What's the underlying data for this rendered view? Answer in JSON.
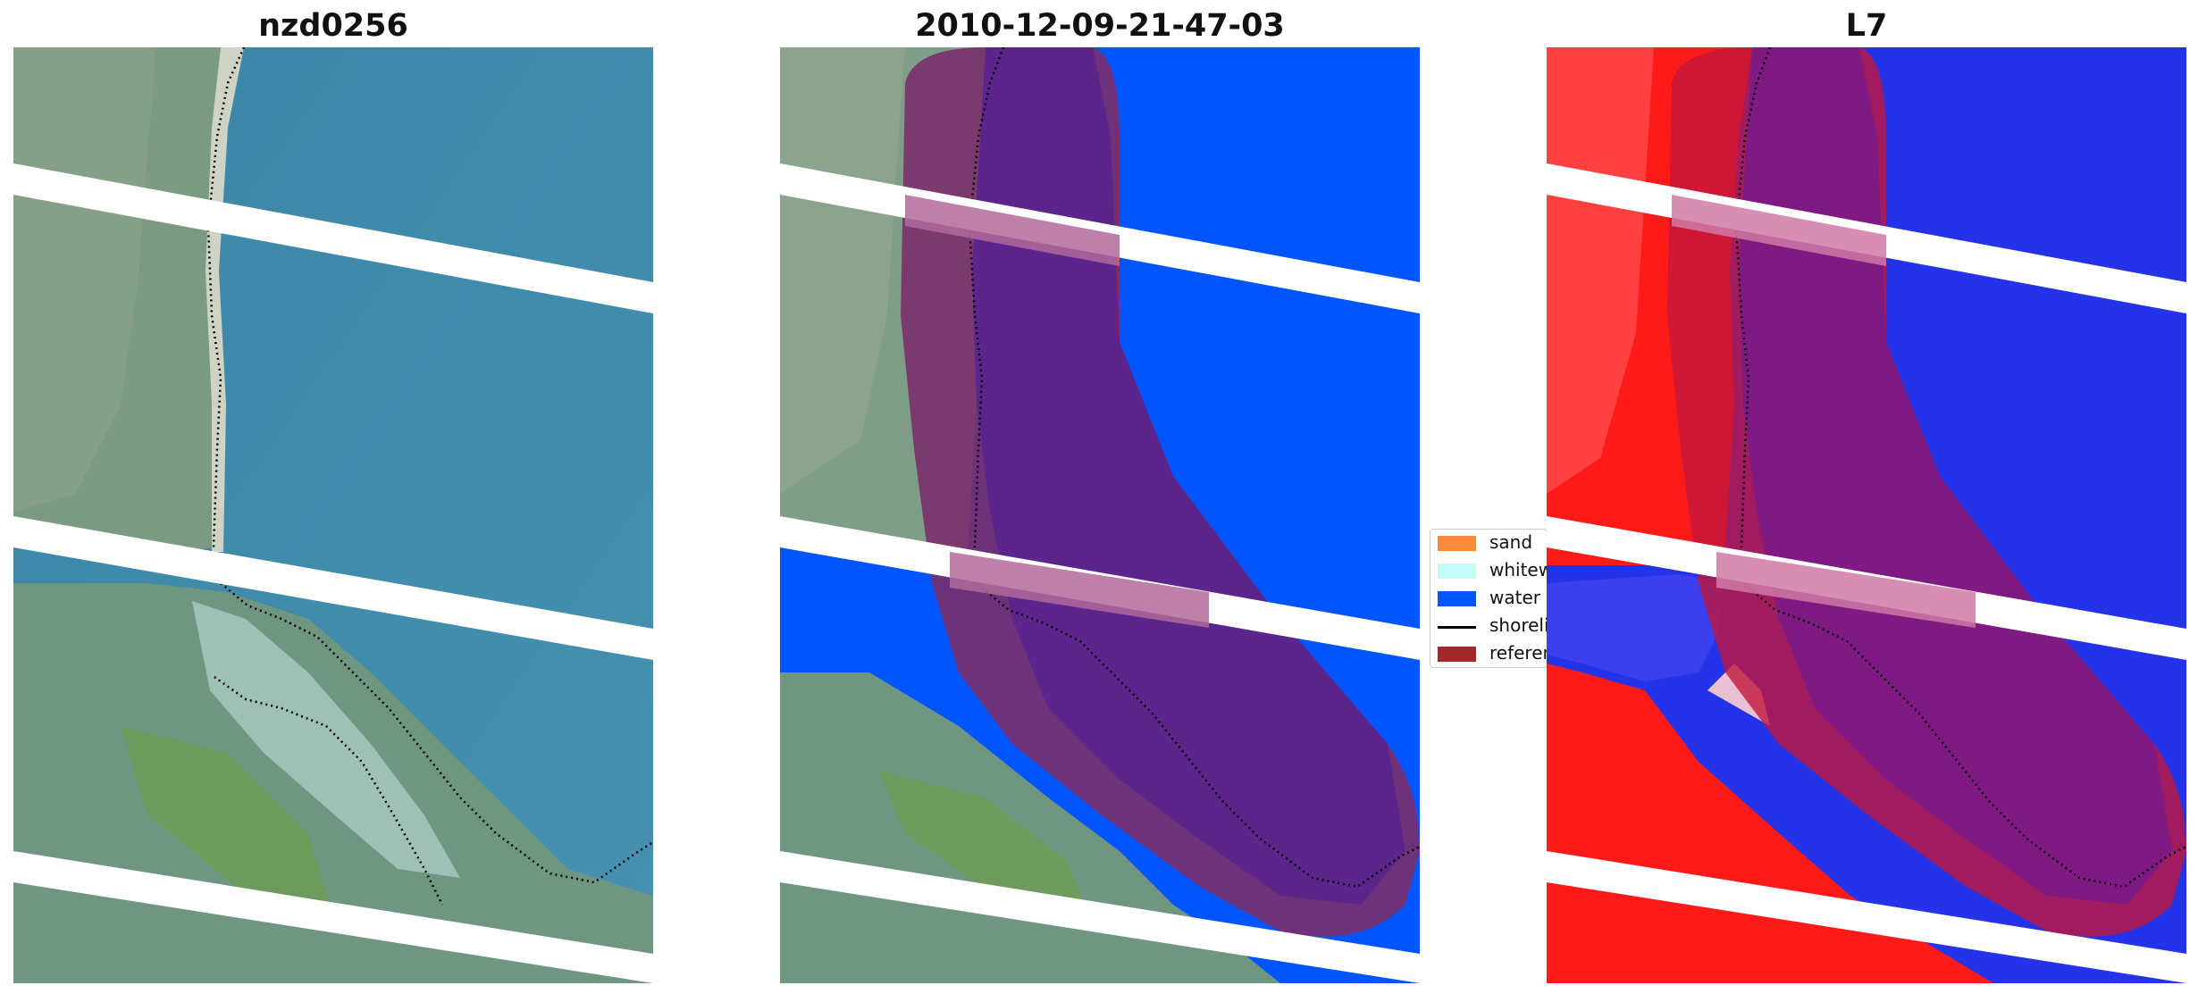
{
  "panels": [
    {
      "title": "nzd0256",
      "kind": "rgb"
    },
    {
      "title": "2010-12-09-21-47-03",
      "kind": "classified"
    },
    {
      "title": "L7",
      "kind": "index"
    }
  ],
  "legend": {
    "items": [
      {
        "label": "sand",
        "color": "#fb8a3c"
      },
      {
        "label": "whitewater",
        "color": "#c6fcf8"
      },
      {
        "label": "water",
        "color": "#0055ff"
      },
      {
        "label": "shoreline",
        "color": "#000000"
      },
      {
        "label": "reference shoreline buffer",
        "color": "#a3272b"
      }
    ]
  },
  "colors": {
    "ocean": "#3f86a8",
    "land": "#6f9a78",
    "water_class": "#0055ff",
    "buffer": "#8a2a5a",
    "index_land": "#ff1a1a",
    "index_water": "#2433e8",
    "nodata_stripe": "#ffffff"
  }
}
